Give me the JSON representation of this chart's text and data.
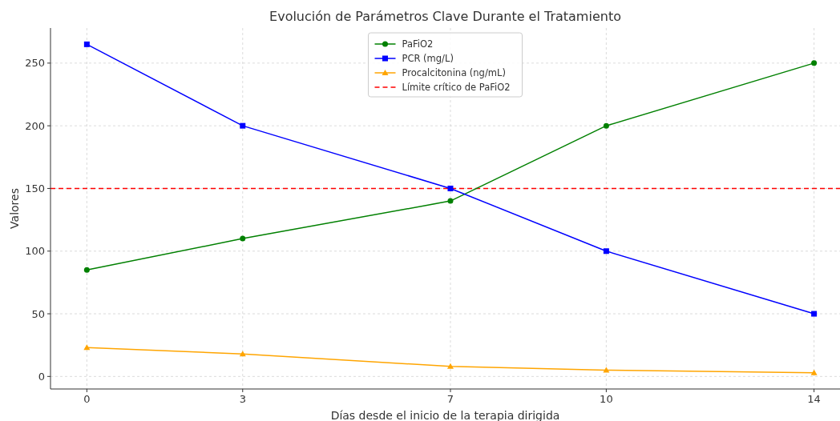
{
  "chart_data": {
    "type": "line",
    "title": "Evolución de Parámetros Clave Durante el Tratamiento",
    "xlabel": "Días desde el inicio de la terapia dirigida",
    "ylabel": "Valores",
    "x": [
      0,
      3,
      7,
      10,
      14
    ],
    "series": [
      {
        "name": "PaFiO2",
        "color": "#008000",
        "marker": "circle",
        "values": [
          85,
          110,
          140,
          200,
          250
        ]
      },
      {
        "name": "PCR (mg/L)",
        "color": "#0000ff",
        "marker": "square",
        "values": [
          265,
          200,
          150,
          100,
          50
        ]
      },
      {
        "name": "Procalcitonina (ng/mL)",
        "color": "#ffa500",
        "marker": "triangle",
        "values": [
          23,
          18,
          8,
          5,
          3
        ]
      }
    ],
    "ref_lines": [
      {
        "axis": "y",
        "value": 150,
        "label": "Límite crítico de PaFiO2",
        "color": "#ff0000",
        "line_style": "dashed"
      }
    ],
    "xlim": [
      -0.7,
      14.5
    ],
    "ylim": [
      -10,
      278
    ],
    "xticks": [
      0,
      3,
      7,
      10,
      14
    ],
    "yticks": [
      0,
      50,
      100,
      150,
      200,
      250
    ],
    "grid": true,
    "legend": "top",
    "line_style": "solid"
  }
}
